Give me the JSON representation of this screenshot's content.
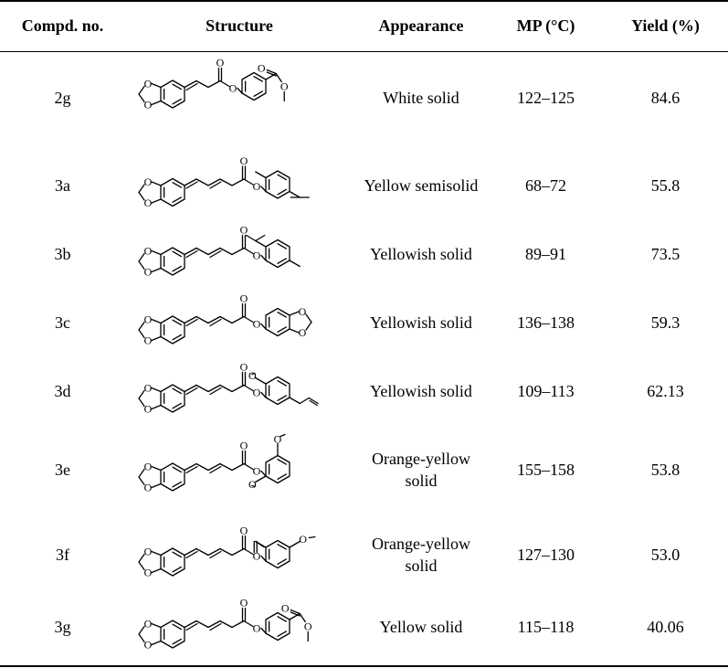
{
  "headers": {
    "compound": "Compd. no.",
    "structure": "Structure",
    "appearance": "Appearance",
    "mp": "MP (°C)",
    "yield": "Yield (%)"
  },
  "rows": [
    {
      "compound": "2g",
      "appearance": "White solid",
      "mp": "122–125",
      "yield": "84.6"
    },
    {
      "compound": "3a",
      "appearance": "Yellow semisolid",
      "mp": "68–72",
      "yield": "55.8"
    },
    {
      "compound": "3b",
      "appearance": "Yellowish solid",
      "mp": "89–91",
      "yield": "73.5"
    },
    {
      "compound": "3c",
      "appearance": "Yellowish solid",
      "mp": "136–138",
      "yield": "59.3"
    },
    {
      "compound": "3d",
      "appearance": "Yellowish solid",
      "mp": "109–113",
      "yield": "62.13"
    },
    {
      "compound": "3e",
      "appearance": "Orange-yellow solid",
      "mp": "155–158",
      "yield": "53.8"
    },
    {
      "compound": "3f",
      "appearance": "Orange-yellow solid",
      "mp": "127–130",
      "yield": "53.0"
    },
    {
      "compound": "3g",
      "appearance": "Yellow solid",
      "mp": "115–118",
      "yield": "40.06"
    }
  ],
  "atom_labels": {
    "oxygen": "O"
  }
}
